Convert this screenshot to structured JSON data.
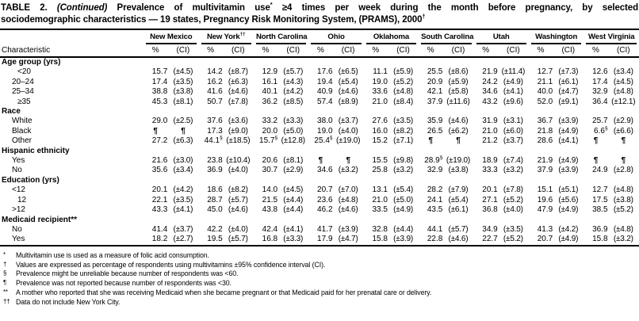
{
  "title": {
    "lines": [
      [
        {
          "t": "TABLE 2. ",
          "s": "b"
        },
        {
          "t": "(Continued)",
          "s": "i"
        },
        {
          "t": " Prevalence of multivitamin use",
          "s": "b"
        },
        {
          "t": "*",
          "s": "sup"
        },
        {
          "t": " ≥4 times per week during the month before pregnancy, by selected",
          "s": "b"
        }
      ],
      [
        {
          "t": "sociodemographic characteristics — 19 states, Pregnancy Risk Monitoring System, (PRAMS), 2000",
          "s": "b"
        },
        {
          "t": "†",
          "s": "sup"
        }
      ]
    ]
  },
  "table": {
    "characteristic_header": "Characteristic",
    "pct_header": "%",
    "ci_header": "(CI)",
    "states": [
      {
        "name": "New Mexico",
        "sup": ""
      },
      {
        "name": "New York",
        "sup": "††"
      },
      {
        "name": "North Carolina",
        "sup": ""
      },
      {
        "name": "Ohio",
        "sup": ""
      },
      {
        "name": "Oklahoma",
        "sup": ""
      },
      {
        "name": "South Carolina",
        "sup": ""
      },
      {
        "name": "Utah",
        "sup": ""
      },
      {
        "name": "Washington",
        "sup": ""
      },
      {
        "name": "West Virginia",
        "sup": ""
      }
    ],
    "rows": [
      {
        "type": "section",
        "label": "Age group (yrs)"
      },
      {
        "type": "data",
        "label": "<20",
        "ind": 2,
        "values": [
          "15.7",
          "(±4.5)",
          "14.2",
          "(±8.7)",
          "12.9",
          "(±5.7)",
          "17.6",
          "(±6.5)",
          "11.1",
          "(±5.9)",
          "25.5",
          "(±8.6)",
          "21.9",
          "(±11.4)",
          "12.7",
          "(±7.3)",
          "12.6",
          "(±3.4)"
        ]
      },
      {
        "type": "data",
        "label": "20–24",
        "values": [
          "17.4",
          "(±3.5)",
          "16.2",
          "(±6.3)",
          "16.1",
          "(±4.3)",
          "19.4",
          "(±5.4)",
          "19.0",
          "(±5.2)",
          "20.9",
          "(±5.9)",
          "24.2",
          "(±4.9)",
          "21.1",
          "(±6.1)",
          "17.4",
          "(±4.5)"
        ]
      },
      {
        "type": "data",
        "label": "25–34",
        "values": [
          "38.8",
          "(±3.8)",
          "41.6",
          "(±4.6)",
          "40.1",
          "(±4.2)",
          "40.9",
          "(±4.6)",
          "33.6",
          "(±4.8)",
          "42.1",
          "(±5.8)",
          "34.6",
          "(±4.1)",
          "40.0",
          "(±4.7)",
          "32.9",
          "(±4.8)"
        ]
      },
      {
        "type": "data",
        "label": "≥35",
        "ind": 2,
        "values": [
          "45.3",
          "(±8.1)",
          "50.7",
          "(±7.8)",
          "36.2",
          "(±8.5)",
          "57.4",
          "(±8.9)",
          "21.0",
          "(±8.4)",
          "37.9",
          "(±11.6)",
          "43.2",
          "(±9.6)",
          "52.0",
          "(±9.1)",
          "36.4",
          "(±12.1)"
        ]
      },
      {
        "type": "section",
        "label": "Race"
      },
      {
        "type": "data",
        "label": "White",
        "values": [
          "29.0",
          "(±2.5)",
          "37.6",
          "(±3.6)",
          "33.2",
          "(±3.3)",
          "38.0",
          "(±3.7)",
          "27.6",
          "(±3.5)",
          "35.9",
          "(±4.6)",
          "31.9",
          "(±3.1)",
          "36.7",
          "(±3.9)",
          "25.7",
          "(±2.9)"
        ]
      },
      {
        "type": "data",
        "label": "Black",
        "values": [
          "¶",
          "¶",
          "17.3",
          "(±9.0)",
          "20.0",
          "(±5.0)",
          "19.0",
          "(±4.0)",
          "16.0",
          "(±8.2)",
          "26.5",
          "(±6.2)",
          "21.0",
          "(±6.0)",
          "21.8",
          "(±4.9)",
          "6.6§",
          "(±6.6)"
        ]
      },
      {
        "type": "data",
        "label": "Other",
        "values": [
          "27.2",
          "(±6.3)",
          "44.1§",
          "(±18.5)",
          "15.7§",
          "(±12.8)",
          "25.4§",
          "(±19.0)",
          "15.2",
          "(±7.1)",
          "¶",
          "¶",
          "21.2",
          "(±3.7)",
          "28.6",
          "(±4.1)",
          "¶",
          "¶"
        ]
      },
      {
        "type": "section",
        "label": "Hispanic ethnicity"
      },
      {
        "type": "data",
        "label": "Yes",
        "values": [
          "21.6",
          "(±3.0)",
          "23.8",
          "(±10.4)",
          "20.6",
          "(±8.1)",
          "¶",
          "¶",
          "15.5",
          "(±9.8)",
          "28.9§",
          "(±19.0)",
          "18.9",
          "(±7.4)",
          "21.9",
          "(±4.9)",
          "¶",
          "¶"
        ]
      },
      {
        "type": "data",
        "label": "No",
        "values": [
          "35.6",
          "(±3.4)",
          "36.9",
          "(±4.0)",
          "30.7",
          "(±2.9)",
          "34.6",
          "(±3.2)",
          "25.8",
          "(±3.2)",
          "32.9",
          "(±3.8)",
          "33.3",
          "(±3.2)",
          "37.9",
          "(±3.9)",
          "24.9",
          "(±2.8)"
        ]
      },
      {
        "type": "section",
        "label": "Education (yrs)"
      },
      {
        "type": "data",
        "label": "<12",
        "values": [
          "20.1",
          "(±4.2)",
          "18.6",
          "(±8.2)",
          "14.0",
          "(±4.5)",
          "20.7",
          "(±7.0)",
          "13.1",
          "(±5.4)",
          "28.2",
          "(±7.9)",
          "20.1",
          "(±7.8)",
          "15.1",
          "(±5.1)",
          "12.7",
          "(±4.8)"
        ]
      },
      {
        "type": "data",
        "label": "12",
        "ind": 2,
        "values": [
          "22.1",
          "(±3.5)",
          "28.7",
          "(±5.7)",
          "21.5",
          "(±4.4)",
          "23.6",
          "(±4.8)",
          "21.0",
          "(±5.0)",
          "24.1",
          "(±5.4)",
          "27.1",
          "(±5.2)",
          "19.6",
          "(±5.6)",
          "17.5",
          "(±3.8)"
        ]
      },
      {
        "type": "data",
        "label": ">12",
        "values": [
          "43.3",
          "(±4.1)",
          "45.0",
          "(±4.6)",
          "43.8",
          "(±4.4)",
          "46.2",
          "(±4.6)",
          "33.5",
          "(±4.9)",
          "43.5",
          "(±6.1)",
          "36.8",
          "(±4.0)",
          "47.9",
          "(±4.9)",
          "38.5",
          "(±5.2)"
        ]
      },
      {
        "type": "section",
        "label": "Medicaid recipient**"
      },
      {
        "type": "data",
        "label": "No",
        "values": [
          "41.4",
          "(±3.7)",
          "42.2",
          "(±4.0)",
          "42.4",
          "(±4.1)",
          "41.7",
          "(±3.9)",
          "32.8",
          "(±4.4)",
          "44.1",
          "(±5.7)",
          "34.9",
          "(±3.5)",
          "41.3",
          "(±4.2)",
          "36.9",
          "(±4.8)"
        ]
      },
      {
        "type": "data",
        "label": "Yes",
        "values": [
          "18.2",
          "(±2.7)",
          "19.5",
          "(±5.7)",
          "16.8",
          "(±3.3)",
          "17.9",
          "(±4.7)",
          "15.8",
          "(±3.9)",
          "22.8",
          "(±4.6)",
          "22.7",
          "(±5.2)",
          "20.7",
          "(±4.9)",
          "15.8",
          "(±3.2)"
        ]
      }
    ]
  },
  "footnotes": [
    {
      "marker": "*",
      "text": "Multivitamin use is used as a measure of folic acid consumption."
    },
    {
      "marker": "†",
      "text": "Values are expressed as percentage of respondents using multivitamins ±95% confidence interval (CI)."
    },
    {
      "marker": "§",
      "text": "Prevalence might be unreliable because number of respondents was <60."
    },
    {
      "marker": "¶",
      "text": "Prevalence was not reported because number of respondents was <30."
    },
    {
      "marker": "**",
      "text": "A mother who reported that she was receiving Medicaid when she became pregnant or that Medicaid paid for her prenatal care or delivery."
    },
    {
      "marker": "††",
      "text": "Data do not include New York City."
    }
  ]
}
